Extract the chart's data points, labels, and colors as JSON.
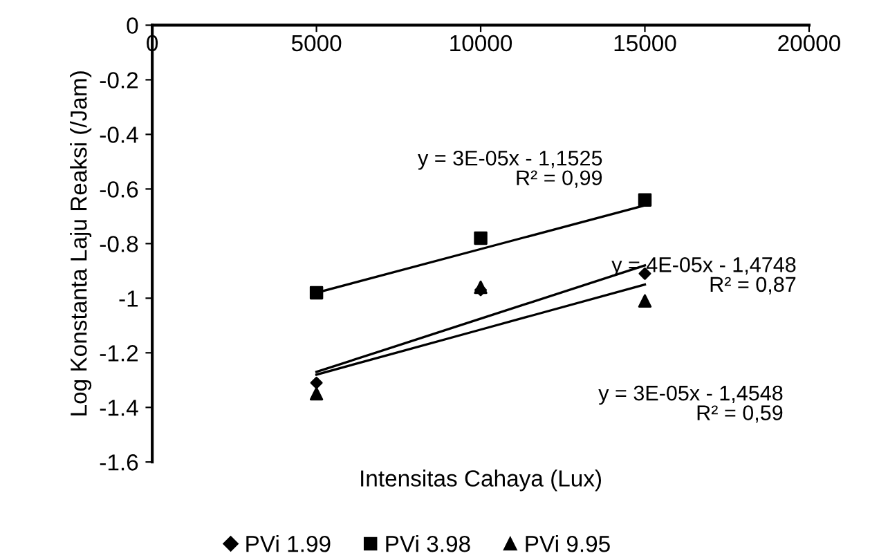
{
  "chart_data": {
    "type": "scatter",
    "xlabel": "Intensitas Cahaya (Lux)",
    "ylabel": "Log Konstanta Laju Reaksi (/Jam)",
    "x": [
      5000,
      10000,
      15000
    ],
    "series": [
      {
        "name": "PVi 1.99",
        "color": "#000000",
        "marker": "diamond",
        "values": [
          -1.31,
          -0.97,
          -0.91
        ]
      },
      {
        "name": "PVi 3.98",
        "color": "#000000",
        "marker": "square",
        "values": [
          -0.98,
          -0.78,
          -0.64
        ]
      },
      {
        "name": "PVi 9.95",
        "color": "#000000",
        "marker": "triangle",
        "values": [
          -1.35,
          -0.96,
          -1.01
        ]
      },
      {
        "type": "line",
        "color": "#000000",
        "values": [
          -1.27,
          -1.075,
          -0.88
        ]
      },
      {
        "type": "line",
        "color": "#000000",
        "values": [
          -0.98,
          -0.82,
          -0.66
        ]
      },
      {
        "type": "line",
        "color": "#000000",
        "values": [
          -1.28,
          -1.115,
          -0.95
        ]
      }
    ],
    "annotations": [
      "y = 3E-05x - 1,1525\nR² = 0,99",
      "y = 4E-05x - 1,4748\nR² = 0,87",
      "y = 3E-05x - 1,4548\nR² = 0,59"
    ],
    "xlim": [
      0,
      20000
    ],
    "xticks": [
      0,
      5000,
      10000,
      15000,
      20000
    ],
    "ylim": [
      -1.6,
      0
    ],
    "yticks": [
      {
        "value": 0,
        "label": "0"
      },
      {
        "value": -0.2,
        "label": "-0.2"
      },
      {
        "value": -0.4,
        "label": "-0.4"
      },
      {
        "value": -0.6,
        "label": "-0.6"
      },
      {
        "value": -0.8,
        "label": "-0.8"
      },
      {
        "value": -1,
        "label": "-1"
      },
      {
        "value": -1.2,
        "label": "-1.2"
      },
      {
        "value": -1.4,
        "label": "-1.4"
      },
      {
        "value": -1.6,
        "label": "-1.6"
      }
    ],
    "grid": false,
    "legend": "bottom",
    "line_style": "solid"
  }
}
